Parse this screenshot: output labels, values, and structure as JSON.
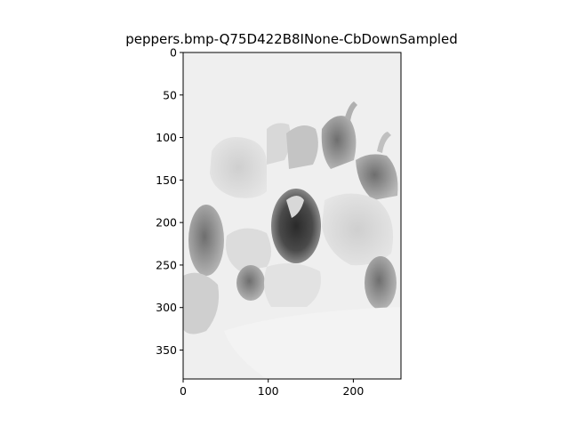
{
  "chart_data": {
    "type": "heatmap",
    "title": "peppers.bmp-Q75D422B8INone-CbDownSampled",
    "xlabel": "",
    "ylabel": "",
    "colormap": "gray",
    "image_width": 256,
    "image_height": 384,
    "xlim": [
      0,
      256
    ],
    "ylim": [
      384,
      0
    ],
    "x_ticks": [
      0,
      100,
      200
    ],
    "y_ticks": [
      0,
      50,
      100,
      150,
      200,
      250,
      300,
      350
    ],
    "grid": false
  }
}
